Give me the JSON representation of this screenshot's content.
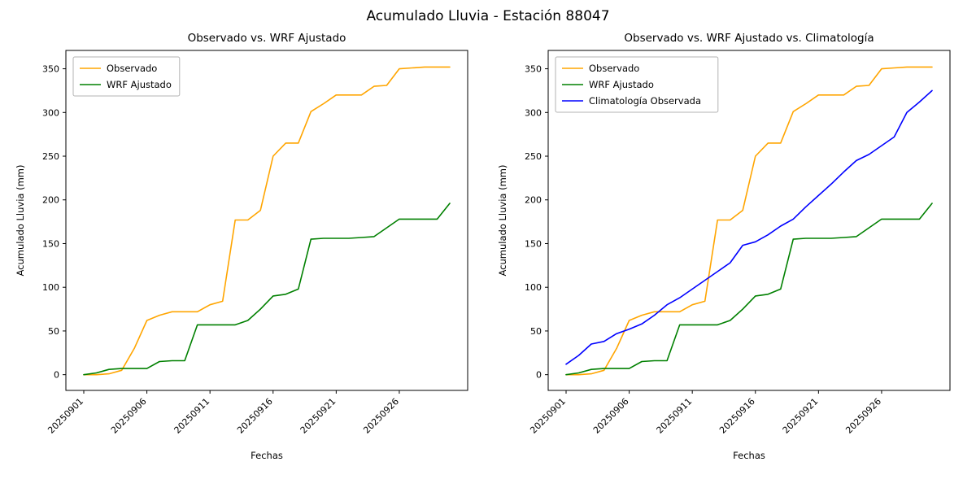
{
  "figure_title": "Acumulado Lluvia - Estación 88047",
  "chart_data": [
    {
      "type": "line",
      "title": "Observado vs. WRF Ajustado",
      "xlabel": "Fechas",
      "ylabel": "Acumulado Lluvia (mm)",
      "ylim": [
        0,
        350
      ],
      "yticks": [
        0,
        50,
        100,
        150,
        200,
        250,
        300,
        350
      ],
      "xtick_labels": [
        "20250901",
        "20250906",
        "20250911",
        "20250916",
        "20250921",
        "20250926"
      ],
      "xtick_indices": [
        0,
        5,
        10,
        15,
        20,
        25
      ],
      "grid": false,
      "legend_position": "upper left",
      "x": [
        "20250901",
        "20250902",
        "20250903",
        "20250904",
        "20250905",
        "20250906",
        "20250907",
        "20250908",
        "20250909",
        "20250910",
        "20250911",
        "20250912",
        "20250913",
        "20250914",
        "20250915",
        "20250916",
        "20250917",
        "20250918",
        "20250919",
        "20250920",
        "20250921",
        "20250922",
        "20250923",
        "20250924",
        "20250925",
        "20250926",
        "20250927",
        "20250928",
        "20250929",
        "20250930"
      ],
      "series": [
        {
          "name": "Observado",
          "color": "#FFA500",
          "values": [
            0,
            0,
            1,
            5,
            30,
            62,
            68,
            72,
            72,
            72,
            80,
            84,
            177,
            177,
            188,
            250,
            265,
            265,
            301,
            310,
            320,
            320,
            320,
            330,
            331,
            350,
            351,
            352,
            352,
            352
          ]
        },
        {
          "name": "WRF Ajustado",
          "color": "#008000",
          "values": [
            0,
            2,
            6,
            7,
            7,
            7,
            15,
            16,
            16,
            57,
            57,
            57,
            57,
            62,
            75,
            90,
            92,
            98,
            155,
            156,
            156,
            156,
            157,
            158,
            168,
            178,
            178,
            178,
            178,
            196
          ]
        }
      ]
    },
    {
      "type": "line",
      "title": "Observado vs. WRF Ajustado vs. Climatología",
      "xlabel": "Fechas",
      "ylabel": "Acumulado Lluvia (mm)",
      "ylim": [
        0,
        350
      ],
      "yticks": [
        0,
        50,
        100,
        150,
        200,
        250,
        300,
        350
      ],
      "xtick_labels": [
        "20250901",
        "20250906",
        "20250911",
        "20250916",
        "20250921",
        "20250926"
      ],
      "xtick_indices": [
        0,
        5,
        10,
        15,
        20,
        25
      ],
      "grid": false,
      "legend_position": "upper left",
      "x": [
        "20250901",
        "20250902",
        "20250903",
        "20250904",
        "20250905",
        "20250906",
        "20250907",
        "20250908",
        "20250909",
        "20250910",
        "20250911",
        "20250912",
        "20250913",
        "20250914",
        "20250915",
        "20250916",
        "20250917",
        "20250918",
        "20250919",
        "20250920",
        "20250921",
        "20250922",
        "20250923",
        "20250924",
        "20250925",
        "20250926",
        "20250927",
        "20250928",
        "20250929",
        "20250930"
      ],
      "series": [
        {
          "name": "Observado",
          "color": "#FFA500",
          "values": [
            0,
            0,
            1,
            5,
            30,
            62,
            68,
            72,
            72,
            72,
            80,
            84,
            177,
            177,
            188,
            250,
            265,
            265,
            301,
            310,
            320,
            320,
            320,
            330,
            331,
            350,
            351,
            352,
            352,
            352
          ]
        },
        {
          "name": "WRF Ajustado",
          "color": "#008000",
          "values": [
            0,
            2,
            6,
            7,
            7,
            7,
            15,
            16,
            16,
            57,
            57,
            57,
            57,
            62,
            75,
            90,
            92,
            98,
            155,
            156,
            156,
            156,
            157,
            158,
            168,
            178,
            178,
            178,
            178,
            196
          ]
        },
        {
          "name": "Climatología Observada",
          "color": "#0000FF",
          "values": [
            12,
            22,
            35,
            38,
            47,
            52,
            58,
            68,
            80,
            88,
            98,
            108,
            118,
            128,
            148,
            152,
            160,
            170,
            178,
            192,
            205,
            218,
            232,
            245,
            252,
            262,
            272,
            300,
            312,
            325
          ]
        }
      ]
    }
  ]
}
